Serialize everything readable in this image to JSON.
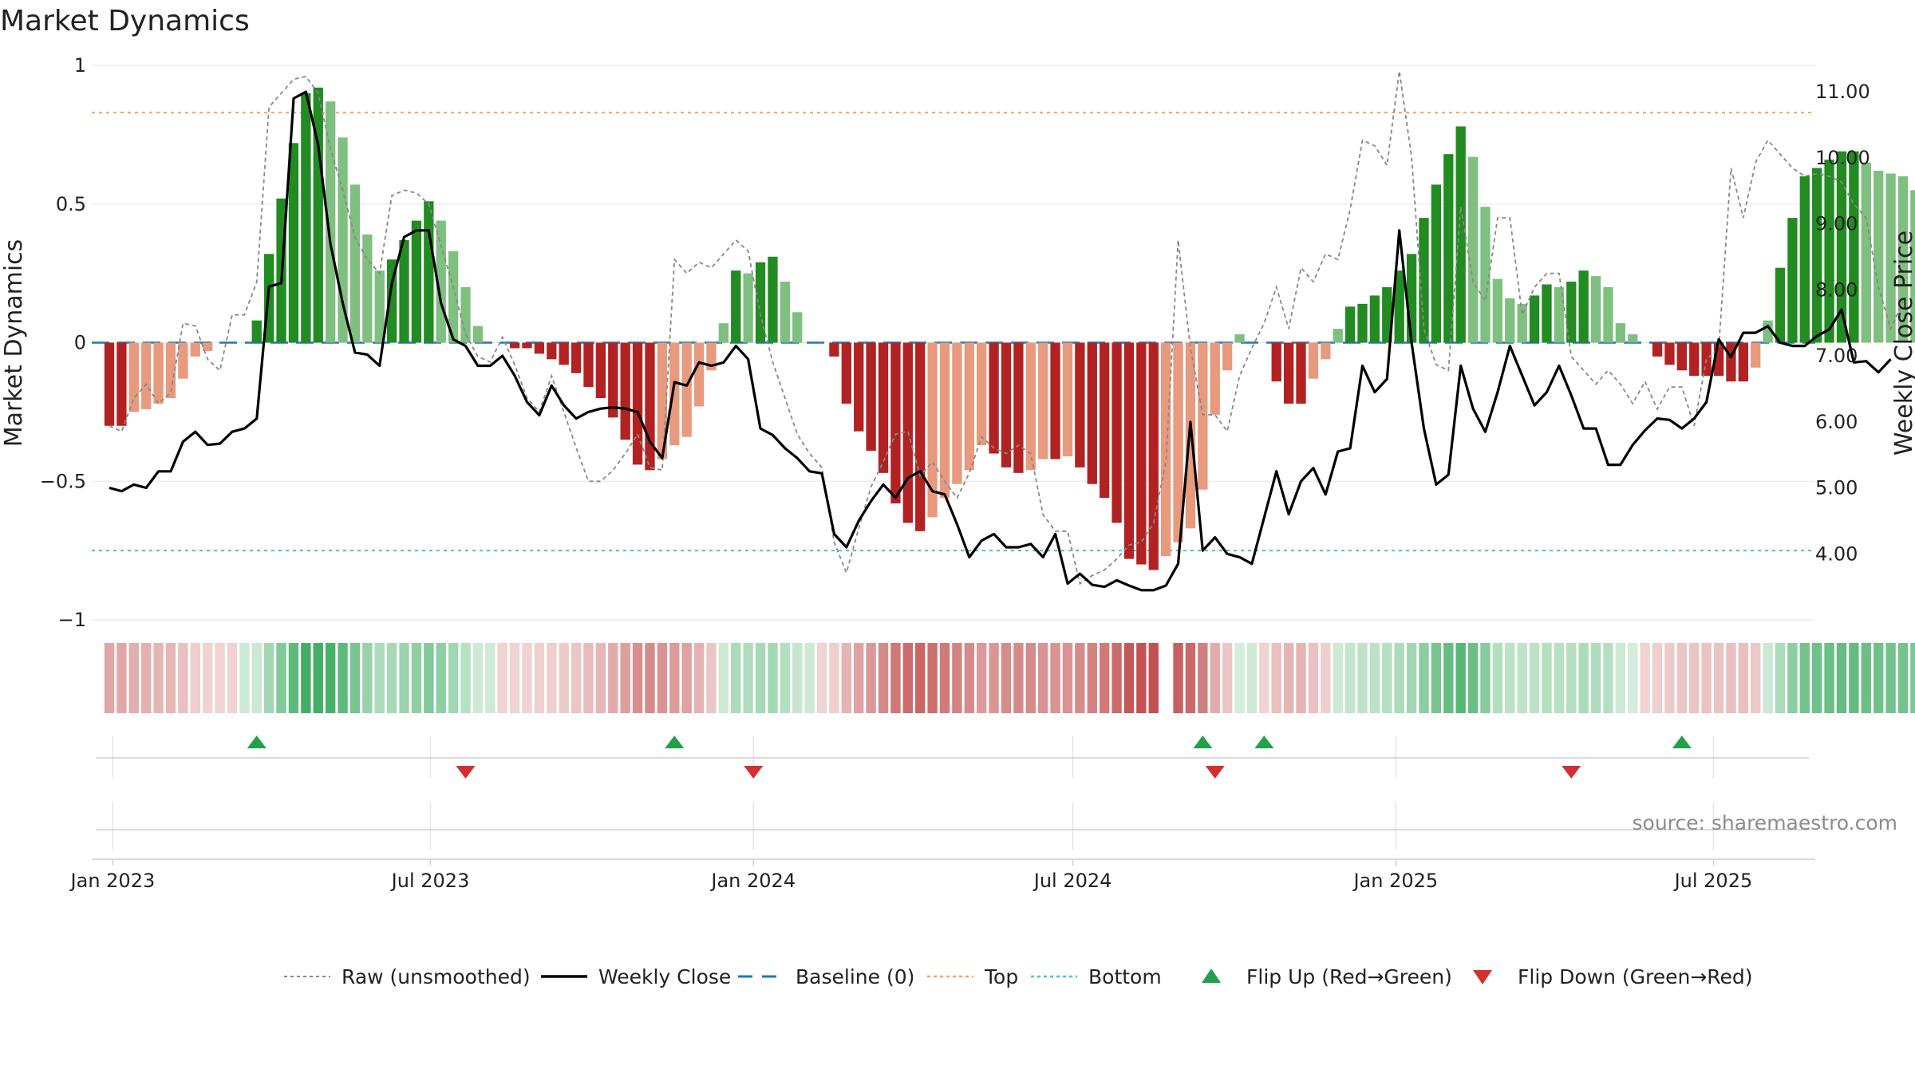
{
  "page": {
    "source": "source: sharemaestro.com"
  },
  "chart_data": {
    "type": "bar",
    "title": "Market Dynamics",
    "ylabel": "Market Dynamics",
    "ylabel_right": "Weekly Close Price",
    "ylim": [
      -1,
      1
    ],
    "ylim_right": [
      3.0,
      11.4
    ],
    "xlim": [
      "2022-12-20",
      "2025-08-28"
    ],
    "yticks": [
      "1",
      "0.5",
      "0",
      "−0.5",
      "−1"
    ],
    "yticks_right": [
      "11.00",
      "10.00",
      "9.00",
      "8.00",
      "7.00",
      "6.00",
      "5.00",
      "4.00"
    ],
    "xticks": [
      {
        "date": "2023-01-01",
        "label": "Jan 2023"
      },
      {
        "date": "2023-07-01",
        "label": "Jul 2023"
      },
      {
        "date": "2024-01-01",
        "label": "Jan 2024"
      },
      {
        "date": "2024-07-01",
        "label": "Jul 2024"
      },
      {
        "date": "2025-01-01",
        "label": "Jan 2025"
      },
      {
        "date": "2025-07-01",
        "label": "Jul 2025"
      }
    ],
    "start_date": "2022-12-30",
    "week_interval_days": 7,
    "top_line": 0.83,
    "bottom_line": -0.75,
    "baseline": 0,
    "grid": true,
    "bars": [
      -0.3,
      -0.3,
      -0.25,
      -0.24,
      -0.22,
      -0.2,
      -0.13,
      -0.05,
      -0.03,
      0,
      0,
      0,
      0.08,
      0.32,
      0.52,
      0.72,
      0.9,
      0.92,
      0.87,
      0.74,
      0.57,
      0.39,
      0.26,
      0.3,
      0.37,
      0.44,
      0.51,
      0.44,
      0.33,
      0.2,
      0.06,
      0,
      0,
      -0.02,
      -0.02,
      -0.04,
      -0.06,
      -0.08,
      -0.11,
      -0.16,
      -0.2,
      -0.27,
      -0.35,
      -0.44,
      -0.46,
      -0.42,
      -0.37,
      -0.34,
      -0.23,
      -0.1,
      0.07,
      0.26,
      0.25,
      0.29,
      0.31,
      0.22,
      0.11,
      0,
      0,
      -0.05,
      -0.22,
      -0.32,
      -0.39,
      -0.47,
      -0.58,
      -0.65,
      -0.68,
      -0.63,
      -0.56,
      -0.51,
      -0.46,
      -0.37,
      -0.4,
      -0.45,
      -0.47,
      -0.46,
      -0.42,
      -0.42,
      -0.41,
      -0.45,
      -0.51,
      -0.56,
      -0.65,
      -0.78,
      -0.8,
      -0.82,
      -0.77,
      -0.72,
      -0.67,
      -0.53,
      -0.26,
      -0.1,
      0.03,
      0,
      0,
      -0.14,
      -0.22,
      -0.22,
      -0.13,
      -0.06,
      0.05,
      0.13,
      0.14,
      0.17,
      0.2,
      0.26,
      0.32,
      0.45,
      0.57,
      0.68,
      0.78,
      0.67,
      0.49,
      0.23,
      0.16,
      0.14,
      0.17,
      0.21,
      0.2,
      0.22,
      0.26,
      0.24,
      0.2,
      0.07,
      0.03,
      0,
      -0.05,
      -0.08,
      -0.1,
      -0.12,
      -0.12,
      -0.12,
      -0.14,
      -0.14,
      -0.09,
      0.08,
      0.27,
      0.45,
      0.6,
      0.63,
      0.66,
      0.69,
      0.69,
      0.65,
      0.62,
      0.61,
      0.6,
      0.55,
      0.44,
      0.3,
      0.13
    ],
    "close": [
      5.0,
      4.95,
      5.05,
      5.0,
      5.25,
      5.25,
      5.7,
      5.85,
      5.65,
      5.67,
      5.85,
      5.9,
      6.05,
      8.05,
      8.1,
      10.9,
      11.0,
      10.2,
      8.7,
      7.8,
      7.05,
      7.02,
      6.85,
      8.1,
      8.8,
      8.9,
      8.9,
      7.8,
      7.25,
      7.15,
      6.85,
      6.85,
      7.0,
      6.7,
      6.3,
      6.1,
      6.55,
      6.25,
      6.05,
      6.15,
      6.2,
      6.22,
      6.2,
      6.15,
      5.7,
      5.45,
      6.6,
      6.55,
      6.9,
      6.85,
      6.9,
      7.15,
      6.95,
      5.9,
      5.8,
      5.6,
      5.45,
      5.25,
      5.22,
      4.3,
      4.1,
      4.5,
      4.8,
      5.05,
      4.85,
      5.15,
      5.25,
      4.95,
      4.9,
      4.45,
      3.95,
      4.2,
      4.3,
      4.1,
      4.1,
      4.15,
      3.95,
      4.3,
      3.55,
      3.7,
      3.53,
      3.5,
      3.6,
      3.52,
      3.45,
      3.45,
      3.52,
      3.85,
      6.0,
      4.05,
      4.25,
      4.0,
      3.95,
      3.85,
      4.55,
      5.25,
      4.6,
      5.1,
      5.3,
      4.9,
      5.55,
      5.6,
      6.85,
      6.45,
      6.65,
      8.9,
      7.2,
      5.9,
      5.05,
      5.2,
      6.85,
      6.2,
      5.85,
      6.45,
      7.15,
      6.7,
      6.25,
      6.45,
      6.85,
      6.4,
      5.9,
      5.9,
      5.35,
      5.35,
      5.65,
      5.87,
      6.05,
      6.03,
      5.9,
      6.05,
      6.3,
      7.25,
      6.98,
      7.35,
      7.35,
      7.45,
      7.2,
      7.15,
      7.15,
      7.3,
      7.4,
      7.7,
      6.9,
      6.92,
      6.75,
      6.95
    ],
    "raw": [
      -0.3,
      -0.32,
      -0.2,
      -0.15,
      -0.22,
      -0.18,
      0.07,
      0.06,
      -0.06,
      -0.1,
      0.1,
      0.1,
      0.22,
      0.85,
      0.9,
      0.95,
      0.96,
      0.9,
      0.7,
      0.55,
      0.38,
      0.3,
      0.25,
      0.53,
      0.55,
      0.54,
      0.5,
      0.35,
      0.2,
      0.03,
      -0.05,
      -0.07,
      0.02,
      -0.08,
      -0.2,
      -0.25,
      -0.12,
      -0.25,
      -0.38,
      -0.5,
      -0.5,
      -0.46,
      -0.4,
      -0.33,
      -0.45,
      -0.46,
      0.3,
      0.25,
      0.29,
      0.27,
      0.32,
      0.37,
      0.33,
      0.1,
      -0.07,
      -0.2,
      -0.33,
      -0.4,
      -0.45,
      -0.72,
      -0.83,
      -0.67,
      -0.52,
      -0.43,
      -0.33,
      -0.32,
      -0.48,
      -0.43,
      -0.5,
      -0.56,
      -0.47,
      -0.34,
      -0.38,
      -0.4,
      -0.37,
      -0.4,
      -0.62,
      -0.68,
      -0.68,
      -0.87,
      -0.84,
      -0.82,
      -0.78,
      -0.73,
      -0.72,
      -0.65,
      -0.43,
      0.37,
      -0.02,
      -0.26,
      -0.26,
      -0.32,
      -0.12,
      -0.02,
      0.07,
      0.2,
      0.05,
      0.27,
      0.22,
      0.32,
      0.3,
      0.48,
      0.73,
      0.71,
      0.64,
      0.98,
      0.67,
      0.05,
      -0.08,
      -0.1,
      0.49,
      0.22,
      0.15,
      0.45,
      0.45,
      0.1,
      0.2,
      0.25,
      0.25,
      -0.05,
      -0.1,
      -0.15,
      -0.1,
      -0.15,
      -0.22,
      -0.14,
      -0.24,
      -0.16,
      -0.16,
      -0.3,
      -0.06,
      -0.02,
      0.63,
      0.45,
      0.65,
      0.73,
      0.68,
      0.63,
      0.6,
      0.61,
      0.6,
      0.58,
      0.5,
      0.45,
      0.2,
      0.05,
      0.15
    ],
    "gaps": [
      {
        "after_index": 85
      }
    ],
    "flip_up": [
      "2023-03-24",
      "2023-11-17",
      "2024-09-13",
      "2024-10-18",
      "2025-06-13"
    ],
    "flip_down": [
      "2023-07-21",
      "2024-01-01",
      "2024-09-20",
      "2025-04-11"
    ],
    "legend": [
      {
        "label": "Raw (unsmoothed)",
        "style": "dotted-gray"
      },
      {
        "label": "Weekly Close",
        "style": "solid-black"
      },
      {
        "label": "Baseline (0)",
        "style": "dashed-blue"
      },
      {
        "label": "Top",
        "style": "dotted-orange"
      },
      {
        "label": "Bottom",
        "style": "dotted-cyan"
      },
      {
        "label": "Flip Up (Red→Green)",
        "style": "triangle-up-green"
      },
      {
        "label": "Flip Down (Green→Red)",
        "style": "triangle-down-red"
      }
    ],
    "legend_position": "bottom-center",
    "colors": {
      "green_dark": "#228b22",
      "green_light": "#7fbf7f",
      "red_dark": "#b22222",
      "red_light": "#e89a7e",
      "raw": "#888888",
      "close": "#000000",
      "baseline": "#1f77b4",
      "top": "#f4a460",
      "bottom": "#40c4d4",
      "flip_up": "#22a04a",
      "flip_down": "#d32f2f"
    }
  }
}
